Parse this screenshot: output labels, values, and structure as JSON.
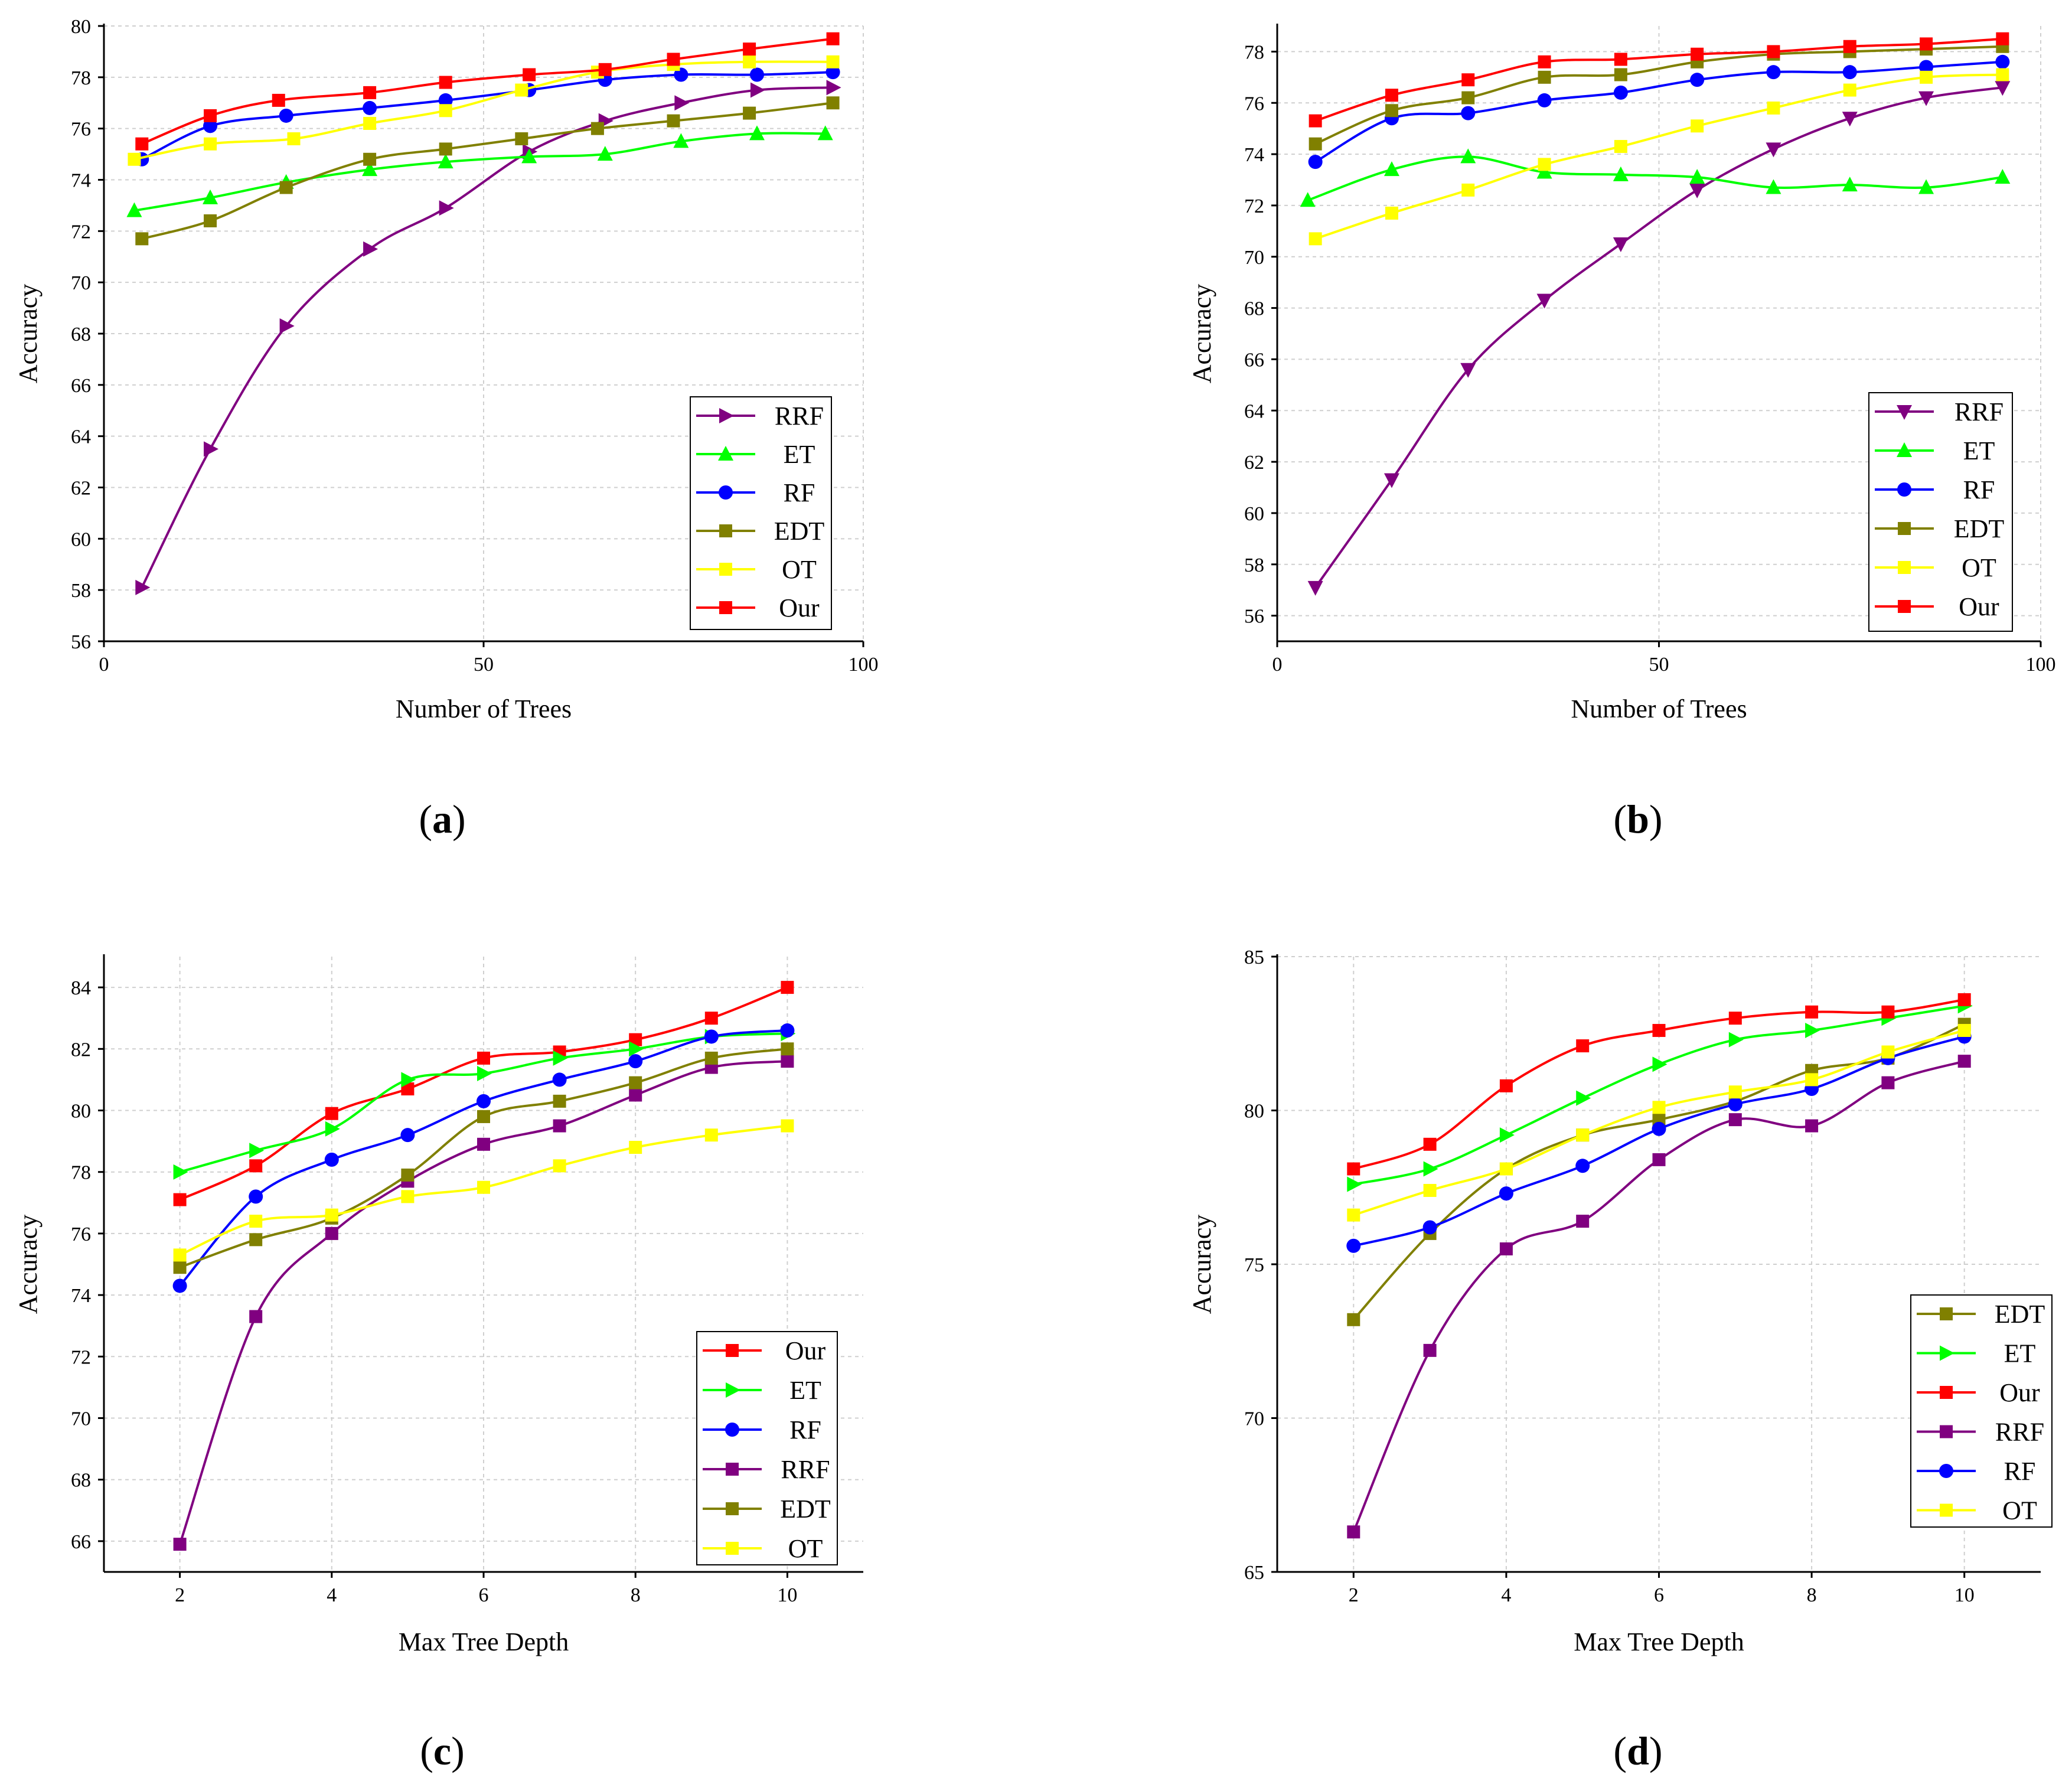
{
  "figure": {
    "panels": [
      {
        "label_open": "(",
        "label_letter": "a",
        "label_close": ")",
        "chart_data": {
          "type": "line",
          "xlabel": "Number of Trees",
          "ylabel": "Accuracy",
          "xlim": [
            0,
            100
          ],
          "ylim": [
            56,
            80
          ],
          "xticks": [
            0,
            50,
            100
          ],
          "xtick_labels": [
            "0",
            "50",
            "100"
          ],
          "yticks": [
            56,
            58,
            60,
            62,
            64,
            66,
            68,
            70,
            72,
            74,
            76,
            78,
            80
          ],
          "ytick_labels": [
            "56",
            "58",
            "60",
            "62",
            "64",
            "66",
            "68",
            "70",
            "72",
            "74",
            "76",
            "78",
            "80"
          ],
          "grid": true,
          "legend": "bottom-right",
          "series": [
            {
              "name": "RRF",
              "color": "#800080",
              "marker": "triangle-right",
              "x": [
                5,
                14,
                24,
                35,
                45,
                56,
                66,
                76,
                86,
                96
              ],
              "y": [
                58.1,
                63.5,
                68.3,
                71.3,
                72.9,
                75.1,
                76.3,
                77.0,
                77.5,
                77.6
              ]
            },
            {
              "name": "ET",
              "color": "#00ff00",
              "marker": "triangle-up",
              "x": [
                4,
                14,
                24,
                35,
                45,
                56,
                66,
                76,
                86,
                95
              ],
              "y": [
                72.8,
                73.3,
                73.9,
                74.4,
                74.7,
                74.9,
                75.0,
                75.5,
                75.8,
                75.8
              ]
            },
            {
              "name": "RF",
              "color": "#0000ff",
              "marker": "circle",
              "x": [
                5,
                14,
                24,
                35,
                45,
                56,
                66,
                76,
                86,
                96
              ],
              "y": [
                74.8,
                76.1,
                76.5,
                76.8,
                77.1,
                77.5,
                77.9,
                78.1,
                78.1,
                78.2
              ]
            },
            {
              "name": "EDT",
              "color": "#808000",
              "marker": "square",
              "x": [
                5,
                14,
                24,
                35,
                45,
                55,
                65,
                75,
                85,
                96
              ],
              "y": [
                71.7,
                72.4,
                73.7,
                74.8,
                75.2,
                75.6,
                76.0,
                76.3,
                76.6,
                77.0
              ]
            },
            {
              "name": "OT",
              "color": "#ffff00",
              "marker": "square",
              "x": [
                4,
                14,
                25,
                35,
                45,
                55,
                65,
                75,
                85,
                96
              ],
              "y": [
                74.8,
                75.4,
                75.6,
                76.2,
                76.7,
                77.5,
                78.2,
                78.5,
                78.6,
                78.6
              ]
            },
            {
              "name": "Our",
              "color": "#ff0000",
              "marker": "square",
              "x": [
                5,
                14,
                23,
                35,
                45,
                56,
                66,
                75,
                85,
                96
              ],
              "y": [
                75.4,
                76.5,
                77.1,
                77.4,
                77.8,
                78.1,
                78.3,
                78.7,
                79.1,
                79.5
              ]
            }
          ]
        }
      },
      {
        "label_open": "(",
        "label_letter": "b",
        "label_close": ")",
        "chart_data": {
          "type": "line",
          "xlabel": "Number of Trees",
          "ylabel": "Accuracy",
          "xlim": [
            0,
            100
          ],
          "ylim": [
            55,
            79
          ],
          "xticks": [
            0,
            50,
            100
          ],
          "xtick_labels": [
            "0",
            "50",
            "100"
          ],
          "yticks": [
            56,
            58,
            60,
            62,
            64,
            66,
            68,
            70,
            72,
            74,
            76,
            78
          ],
          "ytick_labels": [
            "56",
            "58",
            "60",
            "62",
            "64",
            "66",
            "68",
            "70",
            "72",
            "74",
            "76",
            "78"
          ],
          "grid": true,
          "legend": "bottom-right",
          "series": [
            {
              "name": "RRF",
              "color": "#800080",
              "marker": "triangle-down",
              "x": [
                5,
                15,
                25,
                35,
                45,
                55,
                65,
                75,
                85,
                95
              ],
              "y": [
                57.1,
                61.3,
                65.6,
                68.3,
                70.5,
                72.6,
                74.2,
                75.4,
                76.2,
                76.6
              ]
            },
            {
              "name": "ET",
              "color": "#00ff00",
              "marker": "triangle-up",
              "x": [
                4,
                15,
                25,
                35,
                45,
                55,
                65,
                75,
                85,
                95
              ],
              "y": [
                72.2,
                73.4,
                73.9,
                73.3,
                73.2,
                73.1,
                72.7,
                72.8,
                72.7,
                73.1
              ]
            },
            {
              "name": "RF",
              "color": "#0000ff",
              "marker": "circle",
              "x": [
                5,
                15,
                25,
                35,
                45,
                55,
                65,
                75,
                85,
                95
              ],
              "y": [
                73.7,
                75.4,
                75.6,
                76.1,
                76.4,
                76.9,
                77.2,
                77.2,
                77.4,
                77.6
              ]
            },
            {
              "name": "EDT",
              "color": "#808000",
              "marker": "square",
              "x": [
                5,
                15,
                25,
                35,
                45,
                55,
                65,
                75,
                85,
                95
              ],
              "y": [
                74.4,
                75.7,
                76.2,
                77.0,
                77.1,
                77.6,
                77.9,
                78.0,
                78.1,
                78.2
              ]
            },
            {
              "name": "OT",
              "color": "#ffff00",
              "marker": "square",
              "x": [
                5,
                15,
                25,
                35,
                45,
                55,
                65,
                75,
                85,
                95
              ],
              "y": [
                70.7,
                71.7,
                72.6,
                73.6,
                74.3,
                75.1,
                75.8,
                76.5,
                77.0,
                77.1
              ]
            },
            {
              "name": "Our",
              "color": "#ff0000",
              "marker": "square",
              "x": [
                5,
                15,
                25,
                35,
                45,
                55,
                65,
                75,
                85,
                95
              ],
              "y": [
                75.3,
                76.3,
                76.9,
                77.6,
                77.7,
                77.9,
                78.0,
                78.2,
                78.3,
                78.5
              ]
            }
          ]
        }
      },
      {
        "label_open": "(",
        "label_letter": "c",
        "label_close": ")",
        "chart_data": {
          "type": "line",
          "xlabel": "Max Tree Depth",
          "ylabel": "Accuracy",
          "xlim": [
            1,
            11
          ],
          "ylim": [
            65,
            85
          ],
          "xticks": [
            2,
            4,
            6,
            8,
            10
          ],
          "xtick_labels": [
            "2",
            "4",
            "6",
            "8",
            "10"
          ],
          "yticks": [
            66,
            68,
            70,
            72,
            74,
            76,
            78,
            80,
            82,
            84
          ],
          "ytick_labels": [
            "66",
            "68",
            "70",
            "72",
            "74",
            "76",
            "78",
            "80",
            "82",
            "84"
          ],
          "grid": true,
          "legend": "bottom-right",
          "series": [
            {
              "name": "Our",
              "color": "#ff0000",
              "marker": "square",
              "x": [
                2,
                3,
                4,
                5,
                6,
                7,
                8,
                9,
                10
              ],
              "y": [
                77.1,
                78.2,
                79.9,
                80.7,
                81.7,
                81.9,
                82.3,
                83.0,
                84.0
              ]
            },
            {
              "name": "ET",
              "color": "#00ff00",
              "marker": "triangle-right",
              "x": [
                2,
                3,
                4,
                5,
                6,
                7,
                8,
                9,
                10
              ],
              "y": [
                78.0,
                78.7,
                79.4,
                81.0,
                81.2,
                81.7,
                82.0,
                82.4,
                82.5
              ]
            },
            {
              "name": "RF",
              "color": "#0000ff",
              "marker": "circle",
              "x": [
                2,
                3,
                4,
                5,
                6,
                7,
                8,
                9,
                10
              ],
              "y": [
                74.3,
                77.2,
                78.4,
                79.2,
                80.3,
                81.0,
                81.6,
                82.4,
                82.6
              ]
            },
            {
              "name": "RRF",
              "color": "#800080",
              "marker": "square",
              "x": [
                2,
                3,
                4,
                5,
                6,
                7,
                8,
                9,
                10
              ],
              "y": [
                65.9,
                73.3,
                76.0,
                77.7,
                78.9,
                79.5,
                80.5,
                81.4,
                81.6
              ]
            },
            {
              "name": "EDT",
              "color": "#808000",
              "marker": "square",
              "x": [
                2,
                3,
                4,
                5,
                6,
                7,
                8,
                9,
                10
              ],
              "y": [
                74.9,
                75.8,
                76.5,
                77.9,
                79.8,
                80.3,
                80.9,
                81.7,
                82.0
              ]
            },
            {
              "name": "OT",
              "color": "#ffff00",
              "marker": "square",
              "x": [
                2,
                3,
                4,
                5,
                6,
                7,
                8,
                9,
                10
              ],
              "y": [
                75.3,
                76.4,
                76.6,
                77.2,
                77.5,
                78.2,
                78.8,
                79.2,
                79.5
              ]
            }
          ]
        }
      },
      {
        "label_open": "(",
        "label_letter": "d",
        "label_close": ")",
        "chart_data": {
          "type": "line",
          "xlabel": "Max Tree Depth",
          "ylabel": "Accuracy",
          "xlim": [
            1,
            11
          ],
          "ylim": [
            65,
            85
          ],
          "xticks": [
            2,
            4,
            6,
            8,
            10
          ],
          "xtick_labels": [
            "2",
            "4",
            "6",
            "8",
            "10"
          ],
          "yticks": [
            65,
            70,
            75,
            80,
            85
          ],
          "ytick_labels": [
            "65",
            "70",
            "75",
            "80",
            "85"
          ],
          "grid": true,
          "legend": "bottom-right",
          "series": [
            {
              "name": "EDT",
              "color": "#808000",
              "marker": "square",
              "x": [
                2,
                3,
                4,
                5,
                6,
                7,
                8,
                9,
                10
              ],
              "y": [
                73.2,
                76.0,
                78.1,
                79.2,
                79.7,
                80.3,
                81.3,
                81.7,
                82.8
              ]
            },
            {
              "name": "ET",
              "color": "#00ff00",
              "marker": "triangle-right",
              "x": [
                2,
                3,
                4,
                5,
                6,
                7,
                8,
                9,
                10
              ],
              "y": [
                77.6,
                78.1,
                79.2,
                80.4,
                81.5,
                82.3,
                82.6,
                83.0,
                83.4
              ]
            },
            {
              "name": "Our",
              "color": "#ff0000",
              "marker": "square",
              "x": [
                2,
                3,
                4,
                5,
                6,
                7,
                8,
                9,
                10
              ],
              "y": [
                78.1,
                78.9,
                80.8,
                82.1,
                82.6,
                83.0,
                83.2,
                83.2,
                83.6
              ]
            },
            {
              "name": "RRF",
              "color": "#800080",
              "marker": "square",
              "x": [
                2,
                3,
                4,
                5,
                6,
                7,
                8,
                9,
                10
              ],
              "y": [
                66.3,
                72.2,
                75.5,
                76.4,
                78.4,
                79.7,
                79.5,
                80.9,
                81.6
              ]
            },
            {
              "name": "RF",
              "color": "#0000ff",
              "marker": "circle",
              "x": [
                2,
                3,
                4,
                5,
                6,
                7,
                8,
                9,
                10
              ],
              "y": [
                75.6,
                76.2,
                77.3,
                78.2,
                79.4,
                80.2,
                80.7,
                81.7,
                82.4
              ]
            },
            {
              "name": "OT",
              "color": "#ffff00",
              "marker": "square",
              "x": [
                2,
                3,
                4,
                5,
                6,
                7,
                8,
                9,
                10
              ],
              "y": [
                76.6,
                77.4,
                78.1,
                79.2,
                80.1,
                80.6,
                81.0,
                81.9,
                82.6
              ]
            }
          ]
        }
      }
    ]
  }
}
